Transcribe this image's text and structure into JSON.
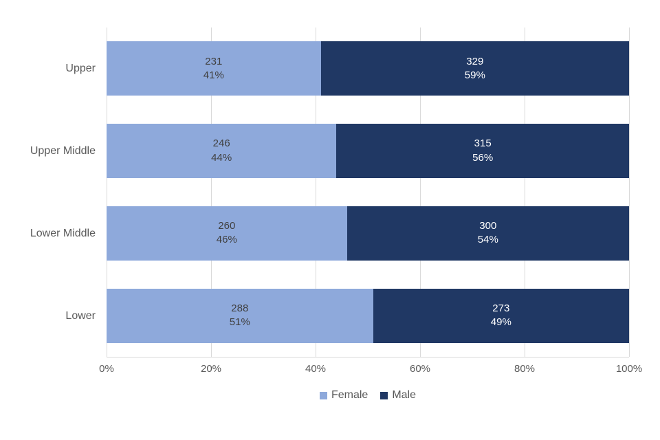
{
  "chart_data": {
    "type": "bar",
    "orientation": "horizontal",
    "stacked": true,
    "stack_mode": "percent",
    "title": "",
    "xlabel": "",
    "ylabel": "",
    "categories": [
      "Upper",
      "Upper Middle",
      "Lower Middle",
      "Lower"
    ],
    "series": [
      {
        "name": "Female",
        "color": "#8ea9db",
        "values": [
          231,
          246,
          260,
          288
        ],
        "percents": [
          41,
          44,
          46,
          51
        ],
        "percent_labels": [
          "41%",
          "44%",
          "46%",
          "51%"
        ]
      },
      {
        "name": "Male",
        "color": "#203864",
        "values": [
          329,
          315,
          300,
          273
        ],
        "percents": [
          59,
          56,
          54,
          49
        ],
        "percent_labels": [
          "59%",
          "56%",
          "54%",
          "49%"
        ]
      }
    ],
    "x_ticks": [
      {
        "label": "0%",
        "value": 0
      },
      {
        "label": "20%",
        "value": 20
      },
      {
        "label": "40%",
        "value": 40
      },
      {
        "label": "60%",
        "value": 60
      },
      {
        "label": "80%",
        "value": 80
      },
      {
        "label": "100%",
        "value": 100
      }
    ],
    "xlim": [
      0,
      100
    ],
    "grid": "vertical",
    "gridline_color": "#d9d9d9",
    "legend_position": "bottom",
    "legend": [
      "Female",
      "Male"
    ]
  }
}
